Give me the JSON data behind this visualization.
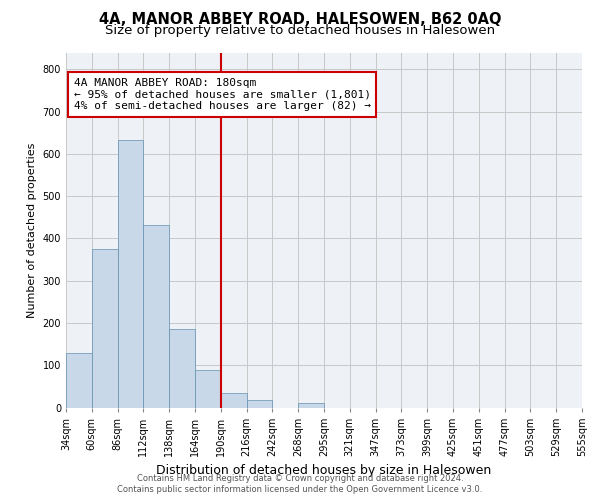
{
  "title": "4A, MANOR ABBEY ROAD, HALESOWEN, B62 0AQ",
  "subtitle": "Size of property relative to detached houses in Halesowen",
  "xlabel": "Distribution of detached houses by size in Halesowen",
  "ylabel": "Number of detached properties",
  "footer_lines": [
    "Contains HM Land Registry data © Crown copyright and database right 2024.",
    "Contains public sector information licensed under the Open Government Licence v3.0."
  ],
  "bin_labels": [
    "34sqm",
    "60sqm",
    "86sqm",
    "112sqm",
    "138sqm",
    "164sqm",
    "190sqm",
    "216sqm",
    "242sqm",
    "268sqm",
    "295sqm",
    "321sqm",
    "347sqm",
    "373sqm",
    "399sqm",
    "425sqm",
    "451sqm",
    "477sqm",
    "503sqm",
    "529sqm",
    "555sqm"
  ],
  "bar_values": [
    128,
    375,
    632,
    432,
    185,
    88,
    35,
    18,
    0,
    10,
    0,
    0,
    0,
    0,
    0,
    0,
    0,
    0,
    0,
    0
  ],
  "bar_color": "#c8d8e8",
  "bar_edge_color": "#6090b0",
  "vline_color": "#cc0000",
  "annotation_title": "4A MANOR ABBEY ROAD: 180sqm",
  "annotation_line1": "← 95% of detached houses are smaller (1,801)",
  "annotation_line2": "4% of semi-detached houses are larger (82) →",
  "annotation_box_color": "#cc0000",
  "ylim": [
    0,
    840
  ],
  "yticks": [
    0,
    100,
    200,
    300,
    400,
    500,
    600,
    700,
    800
  ],
  "background_color": "#eef2f7",
  "grid_color": "#c8c8c8",
  "title_fontsize": 10.5,
  "subtitle_fontsize": 9.5,
  "xlabel_fontsize": 9,
  "ylabel_fontsize": 8,
  "tick_fontsize": 7,
  "annotation_fontsize": 8
}
